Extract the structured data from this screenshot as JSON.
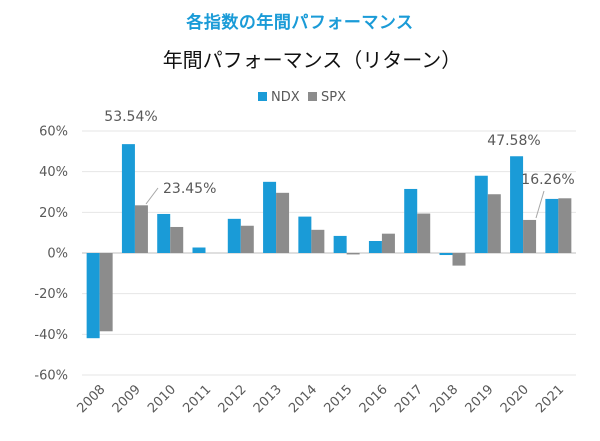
{
  "header": {
    "title": "各指数の年間パフォーマンス"
  },
  "colors": {
    "ndx": "#1a9bd7",
    "spx": "#8c8c8c",
    "grid": "#e6e6e6",
    "axis": "#bfbfbf"
  },
  "chart_data": {
    "type": "bar",
    "title": "年間パフォーマンス（リターン）",
    "categories": [
      "2008",
      "2009",
      "2010",
      "2011",
      "2012",
      "2013",
      "2014",
      "2015",
      "2016",
      "2017",
      "2018",
      "2019",
      "2020",
      "2021"
    ],
    "series": [
      {
        "name": "NDX",
        "values": [
          -41.9,
          53.54,
          19.2,
          2.7,
          16.8,
          35.0,
          17.9,
          8.4,
          5.9,
          31.5,
          -1.0,
          38.0,
          47.58,
          26.6
        ]
      },
      {
        "name": "SPX",
        "values": [
          -38.5,
          23.45,
          12.8,
          0.0,
          13.4,
          29.6,
          11.4,
          -0.7,
          9.5,
          19.4,
          -6.2,
          28.9,
          16.26,
          26.9
        ]
      }
    ],
    "ylim": [
      -60,
      60
    ],
    "yticks": [
      60,
      40,
      20,
      0,
      -20,
      -40,
      -60
    ],
    "ytick_labels": [
      "60%",
      "40%",
      "20%",
      "0%",
      "-20%",
      "-40%",
      "-60%"
    ],
    "legend_position": "top-center",
    "grid": true,
    "annotations": [
      {
        "category": "2009",
        "series": 0,
        "text": "53.54%"
      },
      {
        "category": "2009",
        "series": 1,
        "text": "23.45%"
      },
      {
        "category": "2020",
        "series": 0,
        "text": "47.58%"
      },
      {
        "category": "2020",
        "series": 1,
        "text": "16.26%"
      }
    ]
  }
}
